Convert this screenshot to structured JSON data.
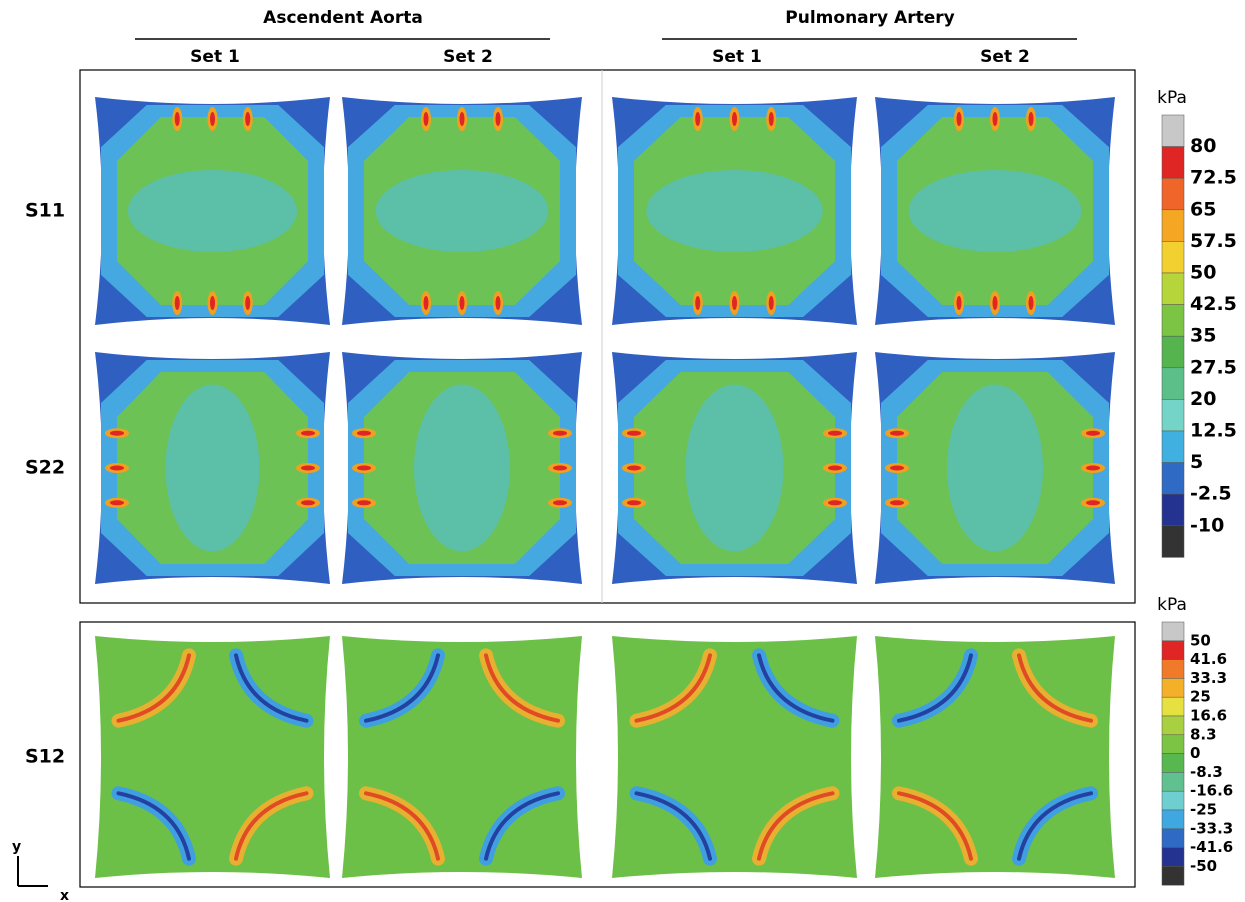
{
  "header": {
    "groups": [
      {
        "title": "Ascendent Aorta",
        "sets": [
          "Set 1",
          "Set 2"
        ]
      },
      {
        "title": "Pulmonary Artery",
        "sets": [
          "Set 1",
          "Set 2"
        ]
      }
    ]
  },
  "rows": [
    "S11",
    "S22",
    "S12"
  ],
  "colorbar_normal": {
    "unit": "kPa",
    "labels": [
      "80",
      "72.5",
      "65",
      "57.5",
      "50",
      "42.5",
      "35",
      "27.5",
      "20",
      "12.5",
      "5",
      "-2.5",
      "-10"
    ],
    "colors": [
      "#c8c8c8",
      "#e02525",
      "#f0652a",
      "#f5a623",
      "#f2d030",
      "#b5d53a",
      "#7cc443",
      "#55b44e",
      "#5cbf8a",
      "#74d4c8",
      "#3fb0e0",
      "#2f6ac4",
      "#24338f",
      "#333333"
    ]
  },
  "colorbar_shear": {
    "unit": "kPa",
    "labels": [
      "50",
      "41.6",
      "33.3",
      "25",
      "16.6",
      "8.3",
      "0",
      "-8.3",
      "-16.6",
      "-25",
      "-33.3",
      "-41.6",
      "-50"
    ],
    "colors": [
      "#c8c8c8",
      "#e02525",
      "#f07a2a",
      "#f5b02a",
      "#e6e040",
      "#a8d040",
      "#7cc443",
      "#58b850",
      "#60c090",
      "#6fcfd0",
      "#3fa8e0",
      "#2f6ac4",
      "#24338f",
      "#333333"
    ]
  },
  "axes": {
    "y": "y",
    "x": "x"
  }
}
